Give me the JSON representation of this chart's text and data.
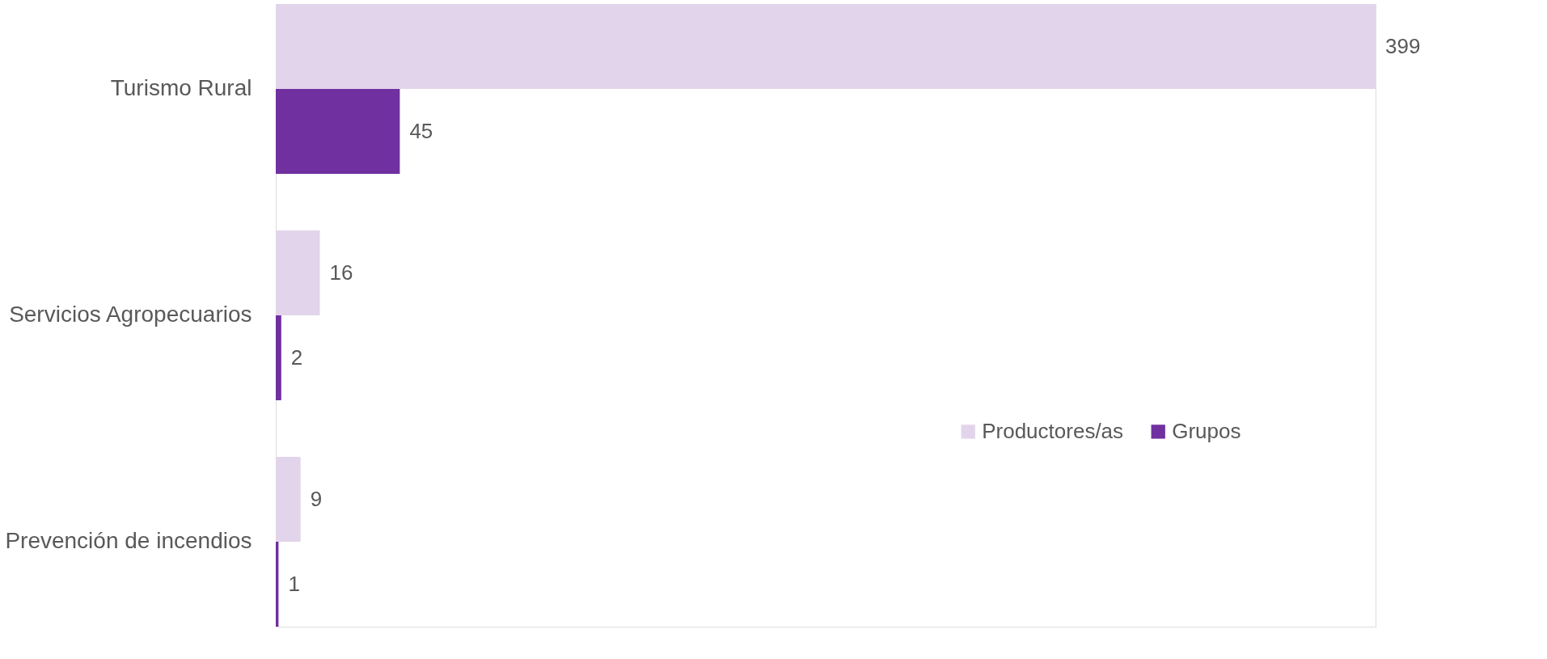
{
  "chart_data": {
    "type": "bar",
    "orientation": "horizontal",
    "categories": [
      "Turismo Rural",
      "Servicios Agropecuarios",
      "Prevención de incendios"
    ],
    "series": [
      {
        "name": "Productores/as",
        "color": "#e2d5eb",
        "values": [
          399,
          16,
          9
        ]
      },
      {
        "name": "Grupos",
        "color": "#7030a0",
        "values": [
          45,
          2,
          1
        ]
      }
    ],
    "data_labels": true,
    "legend": "right",
    "tick_labels": "y"
  }
}
